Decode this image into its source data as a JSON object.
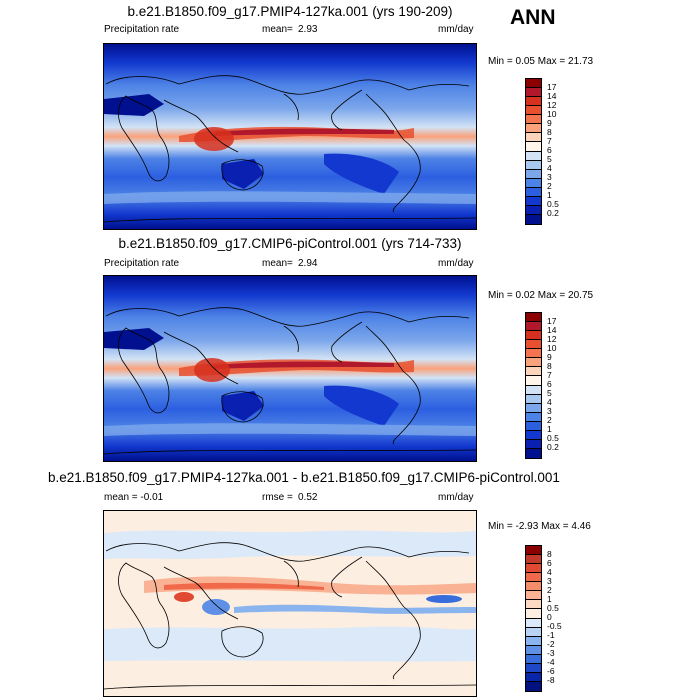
{
  "season": "ANN",
  "panels": [
    {
      "title": "b.e21.B1850.f09_g17.PMIP4-127ka.001 (yrs 190-209)",
      "left_label": "Precipitation rate",
      "mid_label": "mean=",
      "mid_value": "2.93",
      "units": "mm/day",
      "minmax": "Min =   0.05 Max =  21.73",
      "colorbar_labels": [
        "17",
        "14",
        "12",
        "10",
        "9",
        "8",
        "7",
        "6",
        "5",
        "4",
        "3",
        "2",
        "1",
        "0.5",
        "0.2"
      ]
    },
    {
      "title": "b.e21.B1850.f09_g17.CMIP6-piControl.001 (yrs 714-733)",
      "left_label": "Precipitation rate",
      "mid_label": "mean=",
      "mid_value": "2.94",
      "units": "mm/day",
      "minmax": "Min =   0.02 Max =  20.75",
      "colorbar_labels": [
        "17",
        "14",
        "12",
        "10",
        "9",
        "8",
        "7",
        "6",
        "5",
        "4",
        "3",
        "2",
        "1",
        "0.5",
        "0.2"
      ]
    },
    {
      "title": "b.e21.B1850.f09_g17.PMIP4-127ka.001 - b.e21.B1850.f09_g17.CMIP6-piControl.001",
      "left_label": "mean =  -0.01",
      "mid_label": "rmse =",
      "mid_value": "0.52",
      "units": "mm/day",
      "minmax": "Min =  -2.93 Max =   4.46",
      "colorbar_labels": [
        "8",
        "6",
        "4",
        "3",
        "2",
        "1",
        "0.5",
        "0",
        "-0.5",
        "-1",
        "-2",
        "-3",
        "-4",
        "-6",
        "-8"
      ]
    }
  ],
  "colors": {
    "precip_scale": [
      "#8b0000",
      "#b2182b",
      "#d6301f",
      "#e8502f",
      "#f4744f",
      "#f9a27c",
      "#fcd3bb",
      "#fff5ea",
      "#d2e3f5",
      "#a9c8f0",
      "#7da7eb",
      "#4d82e6",
      "#2c5fe0",
      "#1238cf",
      "#0a20b0",
      "#00108f"
    ],
    "diff_scale": [
      "#8b0000",
      "#c0392b",
      "#e04a32",
      "#f0694a",
      "#f58d6b",
      "#f9b394",
      "#fcd9c3",
      "#fdeee2",
      "#dbe9f8",
      "#b8d3f4",
      "#8ab4ee",
      "#5f90e6",
      "#3a6ddc",
      "#1f48c9",
      "#0a26a8",
      "#00127f"
    ]
  }
}
